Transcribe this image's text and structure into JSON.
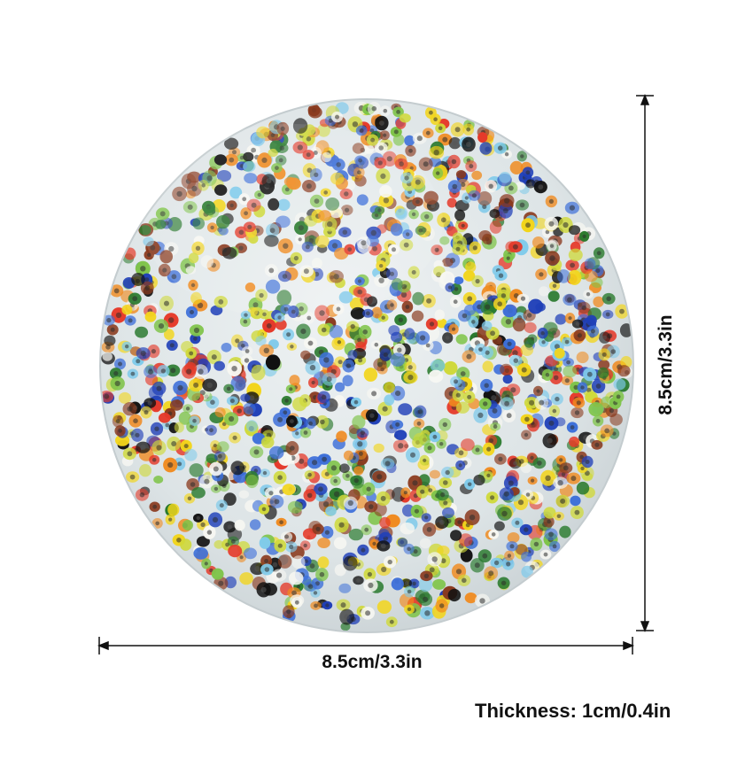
{
  "product": {
    "width_label": "8.5cm/3.3in",
    "height_label": "8.5cm/3.3in",
    "thickness_label": "Thickness: 1cm/0.4in"
  },
  "bead_colors": [
    "#f2d51b",
    "#2a7a2e",
    "#7fc44a",
    "#e53a2a",
    "#1f3fb8",
    "#111111",
    "#f7f7f2",
    "#f08a1e",
    "#7fcaea",
    "#8a3a1e",
    "#3d6fd9",
    "#cfd93a"
  ],
  "colors": {
    "resin": "#dfe6e8",
    "resin_edge": "#c7d0d3",
    "dimension_line": "#111111"
  }
}
